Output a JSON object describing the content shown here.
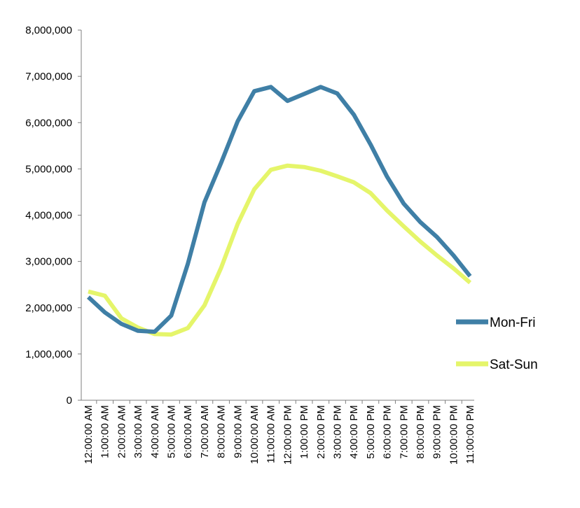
{
  "chart_data": {
    "type": "line",
    "title": "",
    "xlabel": "",
    "ylabel": "",
    "ylim": [
      0,
      8000000
    ],
    "yticks": [
      "0",
      "1,000,000",
      "2,000,000",
      "3,000,000",
      "4,000,000",
      "5,000,000",
      "6,000,000",
      "7,000,000",
      "8,000,000"
    ],
    "ytick_values": [
      0,
      1000000,
      2000000,
      3000000,
      4000000,
      5000000,
      6000000,
      7000000,
      8000000
    ],
    "grid": false,
    "legend_position": "right",
    "categories": [
      "12:00:00 AM",
      "1:00:00 AM",
      "2:00:00 AM",
      "3:00:00 AM",
      "4:00:00 AM",
      "5:00:00 AM",
      "6:00:00 AM",
      "7:00:00 AM",
      "8:00:00 AM",
      "9:00:00 AM",
      "10:00:00 AM",
      "11:00:00 AM",
      "12:00:00 PM",
      "1:00:00 PM",
      "2:00:00 PM",
      "3:00:00 PM",
      "4:00:00 PM",
      "5:00:00 PM",
      "6:00:00 PM",
      "7:00:00 PM",
      "8:00:00 PM",
      "9:00:00 PM",
      "10:00:00 PM",
      "11:00:00 PM"
    ],
    "series": [
      {
        "name": "Mon-Fri",
        "color": "#3f7fa6",
        "values": [
          2230000,
          1900000,
          1650000,
          1500000,
          1480000,
          1830000,
          2950000,
          4280000,
          5130000,
          6030000,
          6680000,
          6770000,
          6470000,
          6620000,
          6770000,
          6630000,
          6170000,
          5530000,
          4830000,
          4250000,
          3850000,
          3530000,
          3130000,
          2680000
        ]
      },
      {
        "name": "Sat-Sun",
        "color": "#e5f56a",
        "values": [
          2350000,
          2260000,
          1770000,
          1570000,
          1430000,
          1420000,
          1560000,
          2050000,
          2860000,
          3810000,
          4560000,
          4980000,
          5070000,
          5040000,
          4960000,
          4840000,
          4710000,
          4480000,
          4100000,
          3760000,
          3430000,
          3130000,
          2850000,
          2540000
        ]
      }
    ]
  }
}
